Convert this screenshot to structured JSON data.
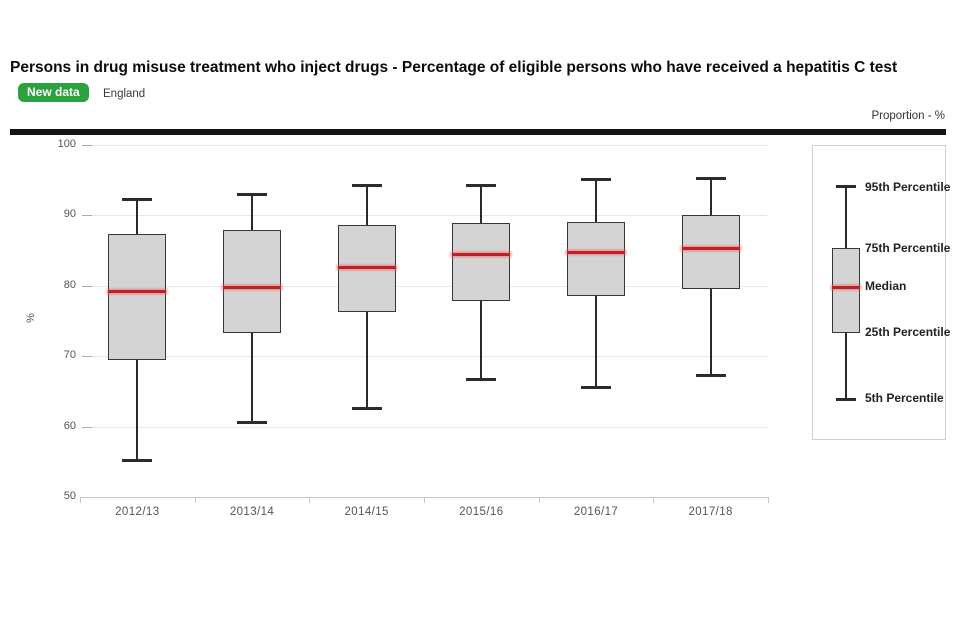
{
  "header": {
    "title": "Persons in drug misuse treatment who inject drugs - Percentage of eligible persons who have received a hepatitis C test",
    "badge": "New data",
    "region": "England",
    "axis_note": "Proportion - %"
  },
  "colors": {
    "badge_green": "#2ba13f",
    "box_fill": "#d4d4d4",
    "box_border": "#383838",
    "median_red": "#c41e25",
    "whisker": "#2b2b2b",
    "gridline": "#e8e8e8",
    "axis": "#c6c6c6",
    "tick_text": "#555555",
    "divider": "#141414"
  },
  "chart_data": {
    "type": "boxplot",
    "title": "Persons in drug misuse treatment who inject drugs - Percentage of eligible persons who have received a hepatitis C test",
    "xlabel": "",
    "ylabel": "%",
    "ylim": [
      50,
      100
    ],
    "yticks": [
      50,
      60,
      70,
      80,
      90,
      100
    ],
    "grid": true,
    "categories": [
      "2012/13",
      "2013/14",
      "2014/15",
      "2015/16",
      "2016/17",
      "2017/18"
    ],
    "series": [
      {
        "name": "2012/13",
        "p5": 55.2,
        "p25": 69.5,
        "median": 79.2,
        "p75": 87.3,
        "p95": 92.2
      },
      {
        "name": "2013/14",
        "p5": 60.7,
        "p25": 73.3,
        "median": 79.8,
        "p75": 87.9,
        "p95": 92.9
      },
      {
        "name": "2014/15",
        "p5": 62.7,
        "p25": 76.3,
        "median": 82.6,
        "p75": 88.7,
        "p95": 94.2
      },
      {
        "name": "2015/16",
        "p5": 66.7,
        "p25": 77.8,
        "median": 84.5,
        "p75": 88.9,
        "p95": 94.2
      },
      {
        "name": "2016/17",
        "p5": 65.6,
        "p25": 78.6,
        "median": 84.7,
        "p75": 89.1,
        "p95": 95.0
      },
      {
        "name": "2017/18",
        "p5": 67.4,
        "p25": 79.5,
        "median": 85.3,
        "p75": 90.0,
        "p95": 95.2
      }
    ],
    "legend": {
      "position": "right",
      "items": [
        "95th Percentile",
        "75th Percentile",
        "Median",
        "25th Percentile",
        "5th Percentile"
      ]
    }
  }
}
